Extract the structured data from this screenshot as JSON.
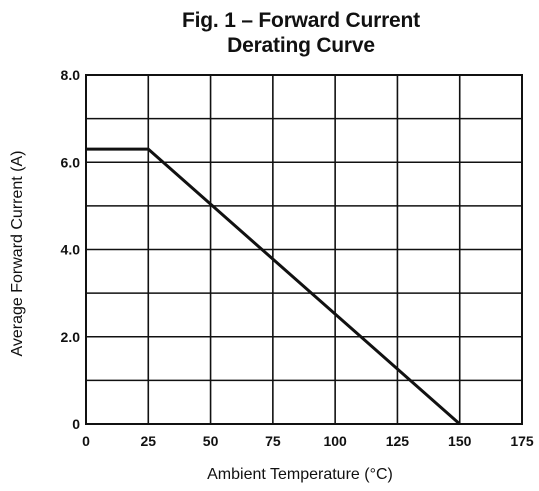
{
  "chart_data": {
    "type": "line",
    "title_lines": [
      "Fig. 1 – Forward Current",
      "Derating Curve"
    ],
    "xlabel": "Ambient Temperature (°C)",
    "ylabel": "Average Forward Current (A)",
    "xlim": [
      0,
      175
    ],
    "ylim": [
      0,
      8
    ],
    "x_ticks": [
      0,
      25,
      50,
      75,
      100,
      125,
      150,
      175
    ],
    "x_tick_labels": [
      "0",
      "25",
      "50",
      "75",
      "100",
      "125",
      "150",
      "175"
    ],
    "y_ticks": [
      0,
      2,
      4,
      6,
      8
    ],
    "y_tick_labels": [
      "0",
      "2.0",
      "4.0",
      "6.0",
      "8.0"
    ],
    "y_grid_step": 1,
    "grid": true,
    "series": [
      {
        "x": [
          0,
          25,
          150
        ],
        "y": [
          6.3,
          6.3,
          0
        ],
        "color": "#111111"
      }
    ]
  }
}
